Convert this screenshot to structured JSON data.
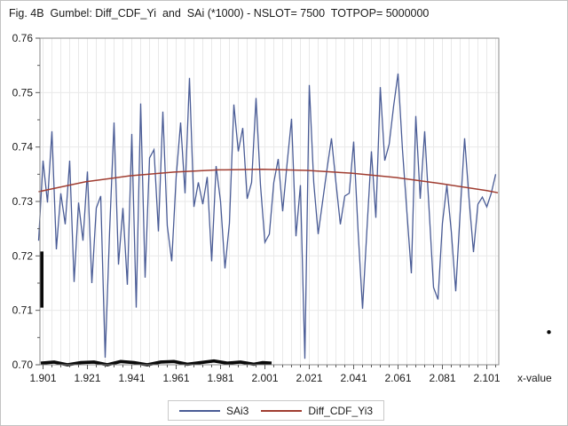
{
  "title": "Fig. 4B  Gumbel: Diff_CDF_Yi  and  SAi (*1000) - NSLOT= 7500  TOTPOP= 5000000",
  "colors": {
    "series_blue": "#4a5c96",
    "series_red": "#a03d31",
    "overlay_black": "#0a0a0a",
    "grid": "#e9e9e9",
    "frame": "#8a8a8a",
    "tick": "#5a5a5a",
    "text": "#1a1a1a",
    "legend_border": "#c9c9c9",
    "figure_border": "#c3c3c3"
  },
  "chart_data": {
    "type": "line",
    "title": "Fig. 4B  Gumbel: Diff_CDF_Yi  and  SAi (*1000) - NSLOT= 7500  TOTPOP= 5000000",
    "xlabel": "x-value",
    "ylabel": "",
    "grid": true,
    "legend_position": "bottom-center",
    "x_axis": {
      "min": 1.8996,
      "max": 2.1064,
      "major_ticks": [
        1.901,
        1.921,
        1.941,
        1.961,
        1.981,
        2.001,
        2.021,
        2.041,
        2.061,
        2.081,
        2.101
      ],
      "major_tick_labels": [
        "1.901",
        "1.921",
        "1.941",
        "1.961",
        "1.981",
        "2.001",
        "2.021",
        "2.041",
        "2.061",
        "2.081",
        "2.101"
      ],
      "minor_tick_step": 0.004,
      "minor_tick_start": 1.901,
      "minor_tick_end": 2.105
    },
    "y_axis": {
      "min": 0.7,
      "max": 0.76,
      "major_ticks": [
        0.7,
        0.71,
        0.72,
        0.73,
        0.74,
        0.75,
        0.76
      ],
      "major_tick_labels": [
        "0.70",
        "0.71",
        "0.72",
        "0.73",
        "0.74",
        "0.75",
        "0.76"
      ],
      "minor_ticks": [
        0.705,
        0.715,
        0.725,
        0.735,
        0.745,
        0.755
      ]
    },
    "series": [
      {
        "name": "SAi3",
        "color_key": "series_blue",
        "stroke_width": 1.3,
        "points": [
          [
            1.899,
            0.7228
          ],
          [
            1.901,
            0.7375
          ],
          [
            1.903,
            0.7298
          ],
          [
            1.905,
            0.7429
          ],
          [
            1.907,
            0.7212
          ],
          [
            1.909,
            0.7315
          ],
          [
            1.911,
            0.7258
          ],
          [
            1.913,
            0.7375
          ],
          [
            1.915,
            0.7152
          ],
          [
            1.917,
            0.7298
          ],
          [
            1.919,
            0.7228
          ],
          [
            1.921,
            0.7355
          ],
          [
            1.923,
            0.715
          ],
          [
            1.925,
            0.7288
          ],
          [
            1.927,
            0.731
          ],
          [
            1.929,
            0.7013
          ],
          [
            1.931,
            0.7245
          ],
          [
            1.933,
            0.7445
          ],
          [
            1.935,
            0.7184
          ],
          [
            1.937,
            0.7288
          ],
          [
            1.939,
            0.7147
          ],
          [
            1.941,
            0.7424
          ],
          [
            1.943,
            0.7105
          ],
          [
            1.945,
            0.748
          ],
          [
            1.947,
            0.716
          ],
          [
            1.949,
            0.738
          ],
          [
            1.951,
            0.7395
          ],
          [
            1.953,
            0.7245
          ],
          [
            1.955,
            0.7465
          ],
          [
            1.957,
            0.7255
          ],
          [
            1.959,
            0.719
          ],
          [
            1.961,
            0.7345
          ],
          [
            1.963,
            0.7445
          ],
          [
            1.965,
            0.7315
          ],
          [
            1.967,
            0.7527
          ],
          [
            1.969,
            0.729
          ],
          [
            1.971,
            0.7335
          ],
          [
            1.973,
            0.7295
          ],
          [
            1.975,
            0.7345
          ],
          [
            1.977,
            0.719
          ],
          [
            1.979,
            0.7365
          ],
          [
            1.981,
            0.73
          ],
          [
            1.983,
            0.7177
          ],
          [
            1.985,
            0.726
          ],
          [
            1.987,
            0.7478
          ],
          [
            1.989,
            0.7392
          ],
          [
            1.991,
            0.7435
          ],
          [
            1.993,
            0.7305
          ],
          [
            1.995,
            0.7335
          ],
          [
            1.997,
            0.749
          ],
          [
            1.999,
            0.733
          ],
          [
            2.001,
            0.7225
          ],
          [
            2.003,
            0.724
          ],
          [
            2.005,
            0.7335
          ],
          [
            2.007,
            0.7378
          ],
          [
            2.009,
            0.7282
          ],
          [
            2.011,
            0.737
          ],
          [
            2.013,
            0.7452
          ],
          [
            2.015,
            0.7236
          ],
          [
            2.017,
            0.733
          ],
          [
            2.019,
            0.7011
          ],
          [
            2.021,
            0.7514
          ],
          [
            2.023,
            0.7335
          ],
          [
            2.025,
            0.724
          ],
          [
            2.027,
            0.73
          ],
          [
            2.029,
            0.736
          ],
          [
            2.031,
            0.7416
          ],
          [
            2.033,
            0.7335
          ],
          [
            2.035,
            0.7258
          ],
          [
            2.037,
            0.731
          ],
          [
            2.039,
            0.7315
          ],
          [
            2.041,
            0.741
          ],
          [
            2.043,
            0.7245
          ],
          [
            2.045,
            0.7103
          ],
          [
            2.047,
            0.725
          ],
          [
            2.049,
            0.7392
          ],
          [
            2.051,
            0.727
          ],
          [
            2.053,
            0.751
          ],
          [
            2.055,
            0.7375
          ],
          [
            2.057,
            0.7405
          ],
          [
            2.059,
            0.7475
          ],
          [
            2.061,
            0.7535
          ],
          [
            2.063,
            0.7395
          ],
          [
            2.065,
            0.728
          ],
          [
            2.067,
            0.7168
          ],
          [
            2.069,
            0.7457
          ],
          [
            2.071,
            0.7305
          ],
          [
            2.073,
            0.7429
          ],
          [
            2.075,
            0.7285
          ],
          [
            2.077,
            0.7142
          ],
          [
            2.079,
            0.712
          ],
          [
            2.081,
            0.726
          ],
          [
            2.083,
            0.733
          ],
          [
            2.085,
            0.7245
          ],
          [
            2.087,
            0.7135
          ],
          [
            2.089,
            0.728
          ],
          [
            2.091,
            0.7416
          ],
          [
            2.093,
            0.7305
          ],
          [
            2.095,
            0.7207
          ],
          [
            2.097,
            0.7295
          ],
          [
            2.099,
            0.7308
          ],
          [
            2.101,
            0.729
          ],
          [
            2.103,
            0.7315
          ],
          [
            2.105,
            0.735
          ]
        ]
      },
      {
        "name": "Diff_CDF_Yi3",
        "color_key": "series_red",
        "stroke_width": 1.5,
        "points": [
          [
            1.899,
            0.7318
          ],
          [
            1.92,
            0.7336
          ],
          [
            1.94,
            0.7347
          ],
          [
            1.96,
            0.7354
          ],
          [
            1.98,
            0.7358
          ],
          [
            2.0,
            0.7359
          ],
          [
            2.02,
            0.7357
          ],
          [
            2.04,
            0.7352
          ],
          [
            2.06,
            0.7344
          ],
          [
            2.08,
            0.7333
          ],
          [
            2.101,
            0.732
          ],
          [
            2.106,
            0.7316
          ]
        ]
      }
    ],
    "black_overlay": {
      "baseline_points": [
        [
          1.9,
          0.7003
        ],
        [
          1.906,
          0.7005
        ],
        [
          1.912,
          0.7
        ],
        [
          1.918,
          0.7004
        ],
        [
          1.924,
          0.7005
        ],
        [
          1.93,
          0.7
        ],
        [
          1.936,
          0.7006
        ],
        [
          1.942,
          0.7004
        ],
        [
          1.948,
          0.7
        ],
        [
          1.954,
          0.7005
        ],
        [
          1.96,
          0.7006
        ],
        [
          1.966,
          0.7001
        ],
        [
          1.972,
          0.7004
        ],
        [
          1.978,
          0.7007
        ],
        [
          1.984,
          0.7003
        ],
        [
          1.99,
          0.7005
        ],
        [
          1.996,
          0.7001
        ],
        [
          2.0,
          0.7004
        ],
        [
          2.004,
          0.7003
        ]
      ],
      "baseline_stroke_width": 3.6,
      "vertical_segment": {
        "x": 1.9003,
        "y_from": 0.7105,
        "y_to": 0.7208,
        "stroke_width": 4.5
      },
      "dot": {
        "x": 2.129,
        "y": 0.706,
        "radius": 2.2
      }
    }
  }
}
